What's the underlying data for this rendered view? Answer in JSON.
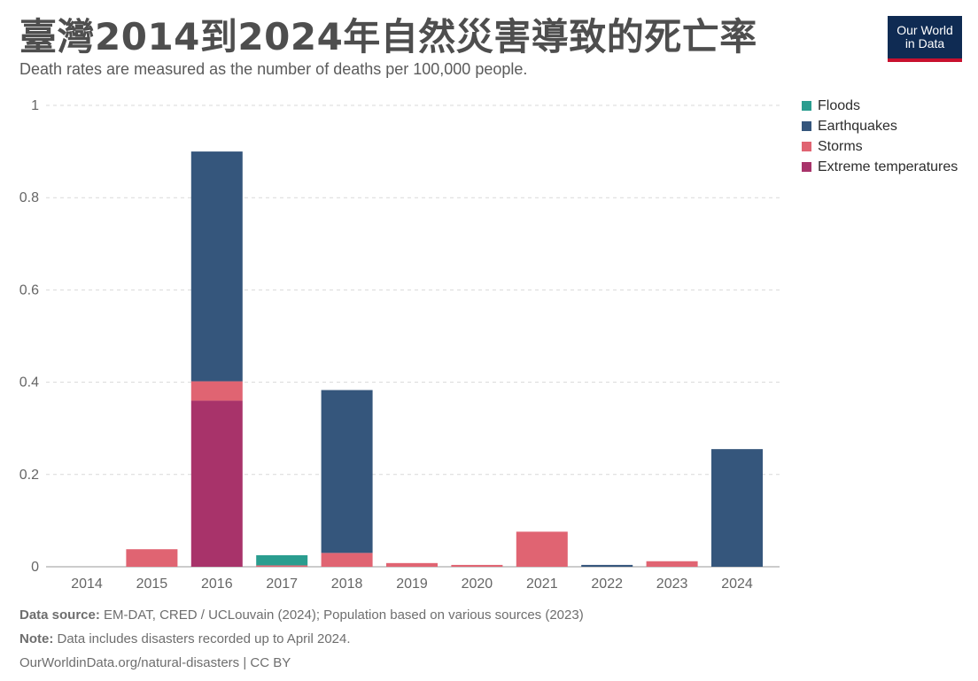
{
  "header": {
    "title": "臺灣2014到2024年自然災害導致的死亡率",
    "subtitle": "Death rates are measured as the number of deaths per 100,000 people.",
    "logo_line1": "Our World",
    "logo_line2": "in Data"
  },
  "colors": {
    "Floods": "#2a9d8f",
    "Earthquakes": "#35567c",
    "Storms": "#e06472",
    "Extreme temperatures": "#a8336a",
    "grid": "#d9d9d9",
    "axis_text": "#666666"
  },
  "chart_data": {
    "type": "bar",
    "stacked": true,
    "categories": [
      "2014",
      "2015",
      "2016",
      "2017",
      "2018",
      "2019",
      "2020",
      "2021",
      "2022",
      "2023",
      "2024"
    ],
    "series": [
      {
        "name": "Extreme temperatures",
        "values": [
          0,
          0,
          0.36,
          0,
          0,
          0,
          0,
          0,
          0,
          0,
          0
        ]
      },
      {
        "name": "Storms",
        "values": [
          0,
          0.038,
          0.042,
          0.003,
          0.03,
          0.008,
          0.004,
          0.076,
          0,
          0.012,
          0
        ]
      },
      {
        "name": "Earthquakes",
        "values": [
          0,
          0,
          0.498,
          0,
          0.353,
          0,
          0,
          0,
          0.004,
          0,
          0.255
        ]
      },
      {
        "name": "Floods",
        "values": [
          0,
          0,
          0,
          0.022,
          0,
          0,
          0,
          0,
          0,
          0,
          0
        ]
      }
    ],
    "yticks": [
      "0",
      "0.2",
      "0.4",
      "0.6",
      "0.8",
      "1"
    ],
    "ylim": [
      0,
      1
    ],
    "grid": true,
    "legend_position": "right",
    "legend_order": [
      "Floods",
      "Earthquakes",
      "Storms",
      "Extreme temperatures"
    ]
  },
  "footer": {
    "source_label": "Data source:",
    "source_text": " EM-DAT, CRED / UCLouvain (2024); Population based on various sources (2023)",
    "note_label": "Note:",
    "note_text": " Data includes disasters recorded up to April 2024.",
    "url": "OurWorldinData.org/natural-disasters | CC BY"
  }
}
